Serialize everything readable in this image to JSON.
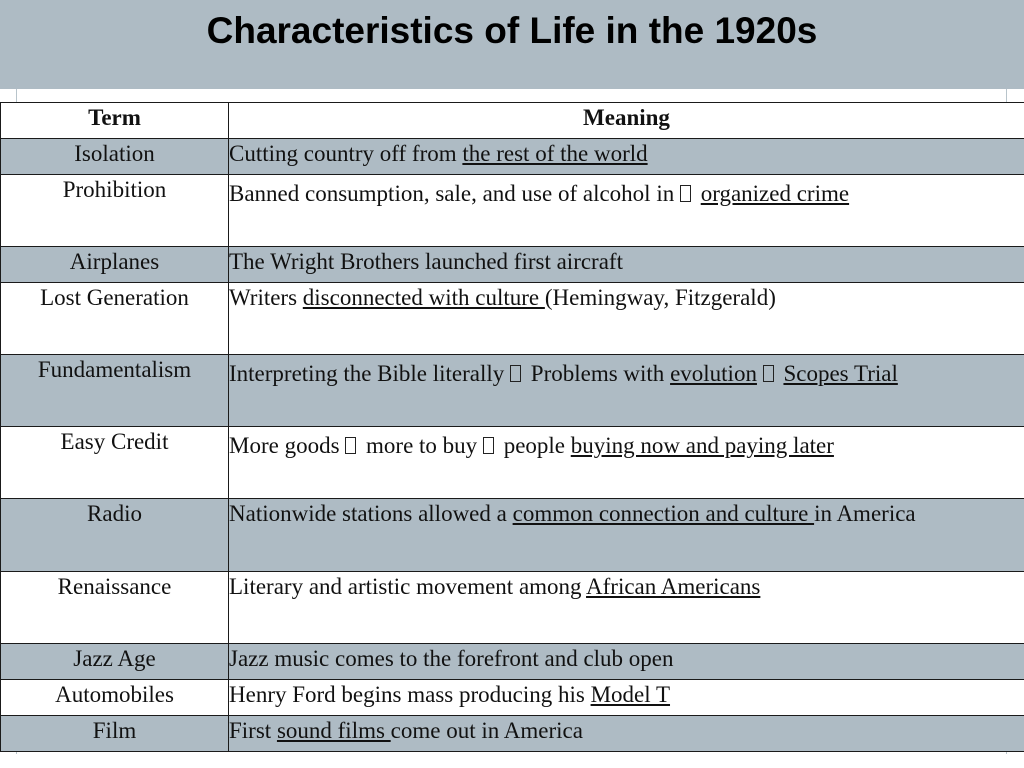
{
  "title": "Characteristics of Life in the 1920s",
  "headers": {
    "term": "Term",
    "meaning": "Meaning"
  },
  "rows": [
    {
      "term": "Isolation",
      "shaded": true,
      "meaning": [
        {
          "t": "Cutting country off from "
        },
        {
          "t": "the rest of the world",
          "u": true
        }
      ]
    },
    {
      "term": "Prohibition",
      "shaded": false,
      "meaning": [
        {
          "t": "Banned consumption, sale, and use of alcohol in "
        },
        {
          "arrow": true
        },
        {
          "t": " "
        },
        {
          "t": "organized crime",
          "u": true
        }
      ]
    },
    {
      "term": "Airplanes",
      "shaded": true,
      "meaning": [
        {
          "t": "The Wright Brothers launched first aircraft"
        }
      ]
    },
    {
      "term": "Lost Generation",
      "shaded": false,
      "meaning": [
        {
          "t": "Writers "
        },
        {
          "t": "disconnected with culture ",
          "u": true
        },
        {
          "t": "(Hemingway, Fitzgerald)"
        }
      ]
    },
    {
      "term": "Fundamentalism",
      "shaded": true,
      "meaning": [
        {
          "t": "Interpreting the Bible literally "
        },
        {
          "arrow": true
        },
        {
          "t": " Problems with "
        },
        {
          "t": "evolution",
          "u": true
        },
        {
          "t": " "
        },
        {
          "arrow": true
        },
        {
          "t": " "
        },
        {
          "t": "Scopes Trial",
          "u": true
        }
      ]
    },
    {
      "term": "Easy Credit",
      "shaded": false,
      "meaning": [
        {
          "t": "More goods "
        },
        {
          "arrow": true
        },
        {
          "t": " more to buy "
        },
        {
          "arrow": true
        },
        {
          "t": " people "
        },
        {
          "t": "buying now and paying later",
          "u": true
        }
      ]
    },
    {
      "term": "Radio",
      "shaded": true,
      "meaning": [
        {
          "t": "Nationwide stations allowed a "
        },
        {
          "t": "common connection and culture ",
          "u": true
        },
        {
          "t": "in America"
        }
      ]
    },
    {
      "term": "Renaissance",
      "shaded": false,
      "meaning": [
        {
          "t": "Literary and artistic movement among "
        },
        {
          "t": "African Americans",
          "u": true
        }
      ]
    },
    {
      "term": "Jazz Age",
      "shaded": true,
      "meaning": [
        {
          "t": "Jazz music comes to the forefront and club open"
        }
      ]
    },
    {
      "term": "Automobiles",
      "shaded": false,
      "meaning": [
        {
          "t": "Henry Ford begins mass producing his "
        },
        {
          "t": "Model T",
          "u": true
        }
      ]
    },
    {
      "term": "Film",
      "shaded": true,
      "meaning": [
        {
          "t": "First "
        },
        {
          "t": "sound films ",
          "u": true
        },
        {
          "t": "come out in America"
        }
      ]
    }
  ]
}
